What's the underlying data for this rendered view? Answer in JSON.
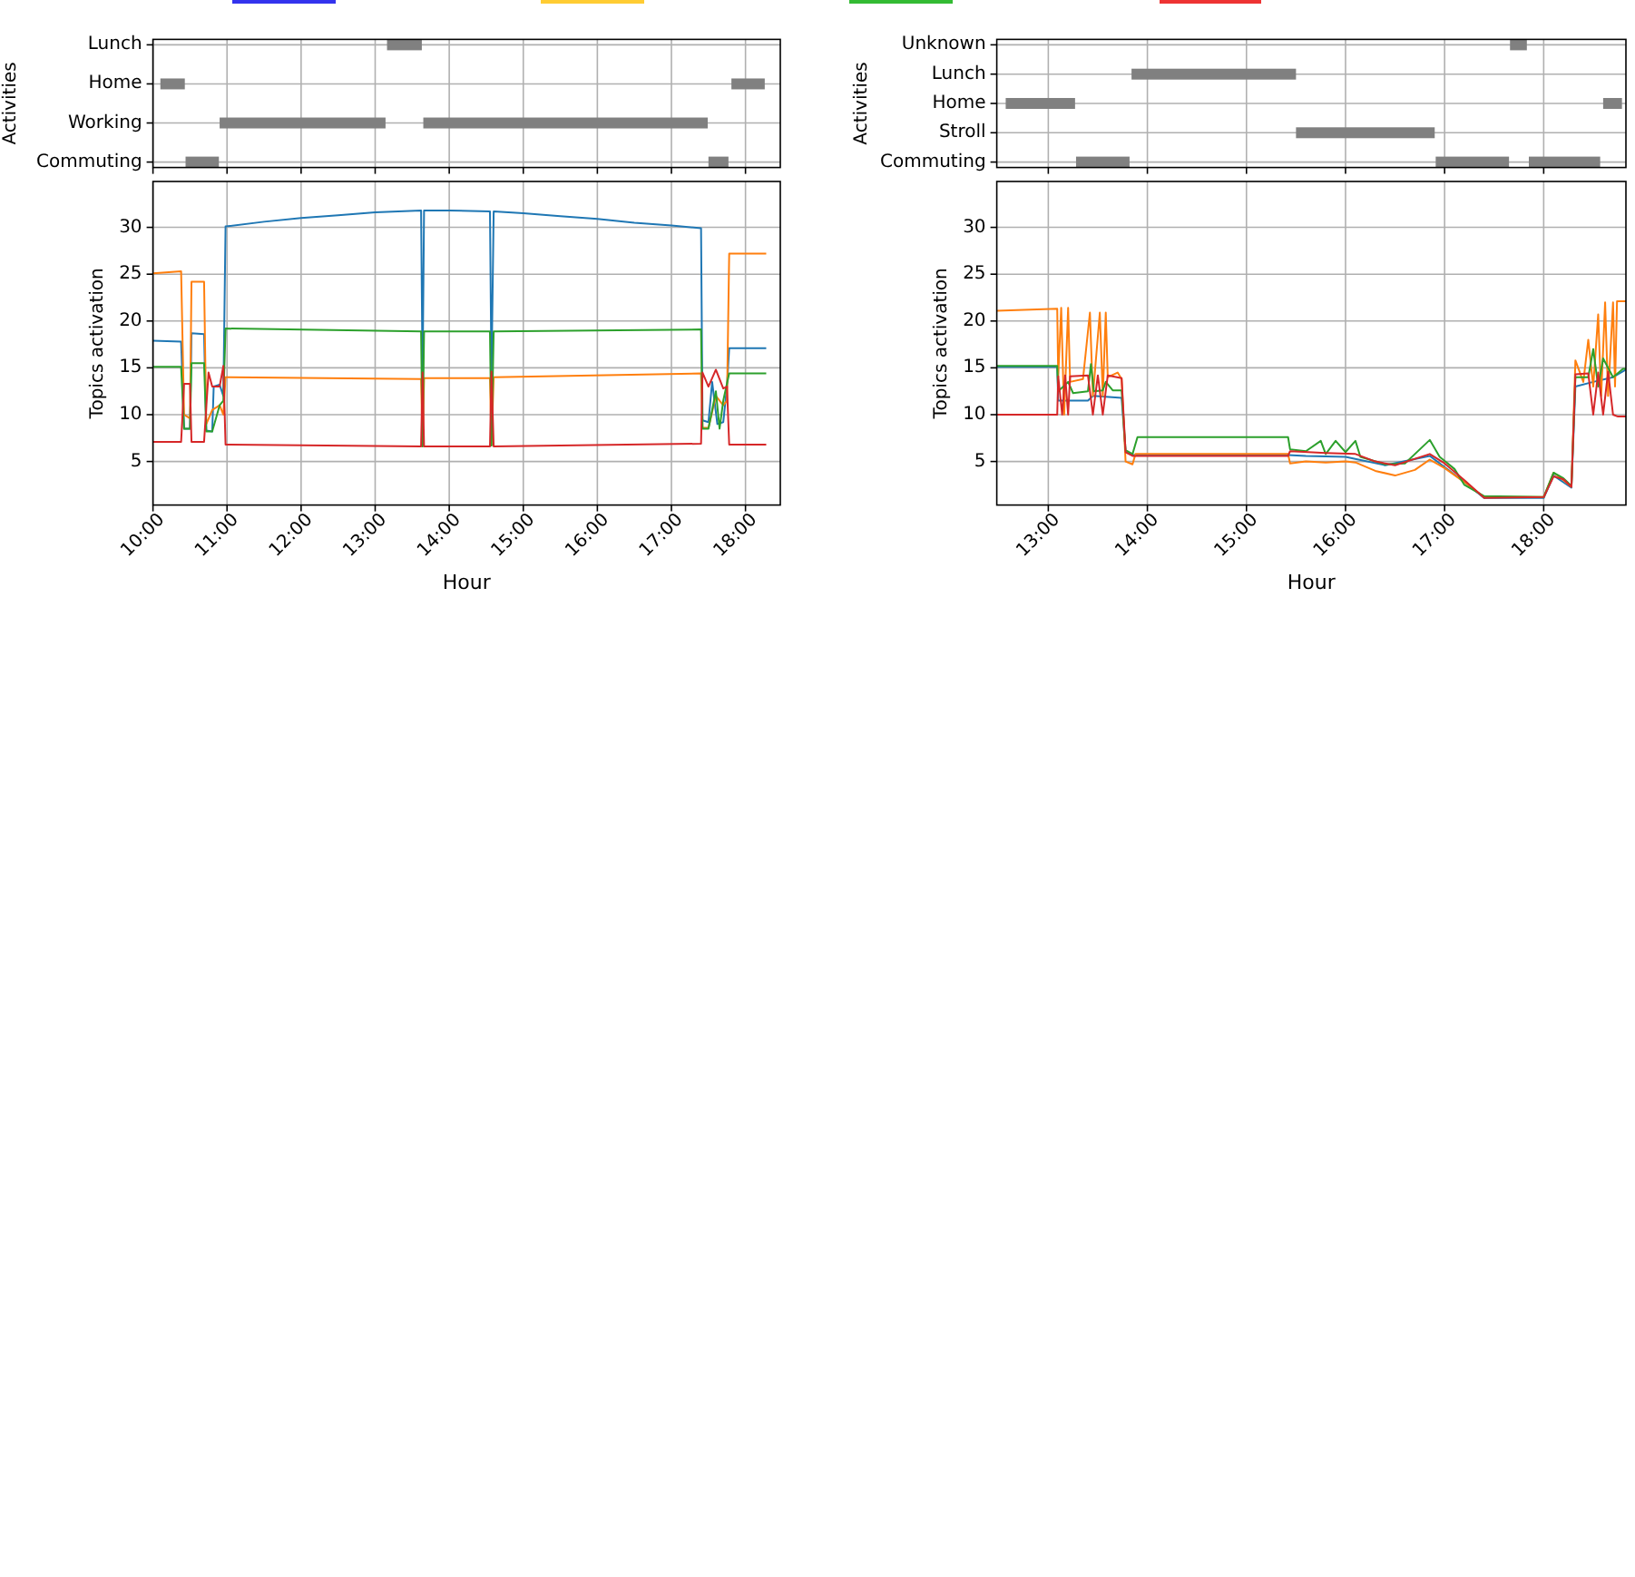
{
  "chart_data": [
    {
      "type": "bar",
      "orientation": "horizontal",
      "ylabel": "Activities",
      "categories": [
        "Lunch",
        "Home",
        "Working",
        "Commuting"
      ],
      "series": [
        {
          "color": "#808080",
          "base": [
            13.16,
            10.1,
            10.9,
            10.44
          ],
          "values": [
            0.47,
            0.33,
            2.24,
            0.45
          ]
        },
        {
          "color": "#808080",
          "base": [
            null,
            17.81,
            13.65,
            17.5
          ],
          "values": [
            null,
            0.45,
            3.84,
            0.27
          ]
        }
      ],
      "xlim": [
        10,
        18.47
      ],
      "xticks": [
        {
          "value": 10,
          "label": null
        },
        {
          "value": 11,
          "label": null
        },
        {
          "value": 12,
          "label": null
        },
        {
          "value": 13,
          "label": null
        },
        {
          "value": 14,
          "label": null
        },
        {
          "value": 15,
          "label": null
        },
        {
          "value": 16,
          "label": null
        },
        {
          "value": 17,
          "label": null
        },
        {
          "value": 18,
          "label": null
        }
      ],
      "grid": true,
      "tick_labels": "y"
    },
    {
      "type": "bar",
      "orientation": "horizontal",
      "ylabel": "Activities",
      "categories": [
        "Unknown",
        "Lunch",
        "Home",
        "Stroll",
        "Commuting"
      ],
      "series": [
        {
          "color": "#808080",
          "base": [
            17.66,
            13.84,
            12.57,
            15.5,
            13.28
          ],
          "values": [
            0.17,
            1.66,
            0.7,
            1.4,
            0.54
          ]
        },
        {
          "color": "#808080",
          "base": [
            null,
            null,
            18.6,
            null,
            16.91
          ],
          "values": [
            null,
            null,
            0.19,
            null,
            0.74
          ]
        },
        {
          "color": "#808080",
          "base": [
            null,
            null,
            null,
            null,
            17.85
          ],
          "values": [
            null,
            null,
            null,
            null,
            0.72
          ]
        }
      ],
      "xlim": [
        12.48,
        18.83
      ],
      "xticks": [
        {
          "value": 13,
          "label": null
        },
        {
          "value": 14,
          "label": null
        },
        {
          "value": 15,
          "label": null
        },
        {
          "value": 16,
          "label": null
        },
        {
          "value": 17,
          "label": null
        },
        {
          "value": 18,
          "label": null
        }
      ],
      "grid": true,
      "tick_labels": "y"
    },
    {
      "type": "line",
      "xlabel": "Hour",
      "ylabel": "Topics activation",
      "grid": true,
      "series": [
        {
          "color": "#1f77b4",
          "x": [
            10.0,
            10.38,
            10.42,
            10.5,
            10.52,
            10.69,
            10.72,
            10.8,
            10.82,
            10.9,
            10.95,
            10.98,
            11.5,
            12,
            12.5,
            13,
            13.62,
            13.64,
            13.66,
            14,
            14.55,
            14.57,
            14.6,
            15,
            15.5,
            16,
            16.5,
            17,
            17.4,
            17.42,
            17.5,
            17.55,
            17.62,
            17.7,
            17.75,
            17.78,
            18.28
          ],
          "values": [
            17.9,
            17.8,
            8.5,
            8.5,
            18.7,
            18.6,
            8.3,
            8.2,
            13.0,
            13.2,
            12,
            30.1,
            30.6,
            31,
            31.3,
            31.6,
            31.8,
            13.8,
            31.8,
            31.8,
            31.7,
            14.0,
            31.7,
            31.5,
            31.2,
            30.9,
            30.5,
            30.2,
            29.9,
            9.4,
            9.2,
            13.5,
            9,
            9.2,
            13,
            17.1,
            17.1
          ]
        },
        {
          "color": "#ff7f0e",
          "x": [
            10.0,
            10.38,
            10.42,
            10.5,
            10.52,
            10.69,
            10.72,
            10.8,
            10.9,
            10.95,
            10.98,
            13.62,
            13.64,
            13.66,
            14.55,
            14.57,
            14.6,
            17.4,
            17.42,
            17.5,
            17.6,
            17.7,
            17.75,
            17.78,
            18.28
          ],
          "values": [
            25.1,
            25.3,
            10,
            9.6,
            24.2,
            24.2,
            9,
            10.5,
            11,
            10,
            14.0,
            13.8,
            6.6,
            13.9,
            13.9,
            6.7,
            14.0,
            14.4,
            8.6,
            8.6,
            12,
            11,
            11.5,
            27.2,
            27.2
          ]
        },
        {
          "color": "#2ca02c",
          "x": [
            10.0,
            10.38,
            10.42,
            10.5,
            10.52,
            10.69,
            10.72,
            10.8,
            10.9,
            10.95,
            10.98,
            13.62,
            13.64,
            13.66,
            14.55,
            14.57,
            14.6,
            17.4,
            17.42,
            17.5,
            17.6,
            17.65,
            17.7,
            17.78,
            18.28
          ],
          "values": [
            15.1,
            15.1,
            8.5,
            8.5,
            15.5,
            15.5,
            8.2,
            8.2,
            11,
            11.5,
            19.2,
            18.9,
            6.6,
            18.9,
            18.9,
            6.7,
            18.9,
            19.1,
            8.5,
            8.5,
            12.5,
            8.5,
            11.5,
            14.4,
            14.4
          ]
        },
        {
          "color": "#d62728",
          "x": [
            10.0,
            10.38,
            10.42,
            10.5,
            10.52,
            10.69,
            10.75,
            10.8,
            10.9,
            10.95,
            10.98,
            13.62,
            13.64,
            13.66,
            14.55,
            14.57,
            14.6,
            17.4,
            17.42,
            17.5,
            17.6,
            17.7,
            17.75,
            17.78,
            18.28
          ],
          "values": [
            7.1,
            7.1,
            13.3,
            13.3,
            7.1,
            7.1,
            14.5,
            13,
            13,
            15.2,
            6.8,
            6.6,
            14.5,
            6.6,
            6.6,
            14.6,
            6.6,
            6.9,
            14.5,
            13,
            14.8,
            12.8,
            13,
            6.8,
            6.8
          ]
        }
      ],
      "xlim": [
        10,
        18.47
      ],
      "xticks": [
        {
          "value": 10,
          "label": "10:00"
        },
        {
          "value": 11,
          "label": "11:00"
        },
        {
          "value": 12,
          "label": "12:00"
        },
        {
          "value": 13,
          "label": "13:00"
        },
        {
          "value": 14,
          "label": "14:00"
        },
        {
          "value": 15,
          "label": "15:00"
        },
        {
          "value": 16,
          "label": "16:00"
        },
        {
          "value": 17,
          "label": "17:00"
        },
        {
          "value": 18,
          "label": "18:00"
        }
      ],
      "ylim": [
        0.35,
        34.9
      ],
      "yticks": [
        5,
        10,
        15,
        20,
        25,
        30
      ]
    },
    {
      "type": "line",
      "xlabel": "Hour",
      "ylabel": "Topics activation",
      "grid": true,
      "series": [
        {
          "color": "#1f77b4",
          "x": [
            12.48,
            13.09,
            13.1,
            13.4,
            13.45,
            13.74,
            13.78,
            13.85,
            15.42,
            15.6,
            16,
            16.4,
            16.85,
            17.2,
            17.4,
            18.0,
            18.1,
            18.28,
            18.32,
            18.5,
            18.7,
            18.83
          ],
          "values": [
            15.1,
            15.1,
            11.5,
            11.5,
            12,
            11.8,
            6,
            5.7,
            5.7,
            5.6,
            5.5,
            4.6,
            5.6,
            2.8,
            1.1,
            1.1,
            3.5,
            2.2,
            13,
            13.5,
            14,
            14.8
          ]
        },
        {
          "color": "#ff7f0e",
          "x": [
            12.48,
            13.09,
            13.1,
            13.13,
            13.16,
            13.2,
            13.22,
            13.35,
            13.42,
            13.45,
            13.52,
            13.55,
            13.58,
            13.6,
            13.7,
            13.74,
            13.78,
            13.85,
            13.88,
            15.42,
            15.44,
            15.6,
            15.8,
            16,
            16.1,
            16.3,
            16.5,
            16.7,
            16.85,
            17,
            17.2,
            17.4,
            18.0,
            18.1,
            18.2,
            18.28,
            18.32,
            18.4,
            18.45,
            18.5,
            18.55,
            18.58,
            18.62,
            18.65,
            18.7,
            18.72,
            18.74,
            18.83
          ],
          "values": [
            21.1,
            21.3,
            14,
            21.4,
            10,
            21.4,
            13.5,
            13.8,
            20.9,
            12,
            20.9,
            12,
            20.9,
            14,
            14.5,
            13.8,
            5,
            4.7,
            5.8,
            5.8,
            4.8,
            5,
            4.9,
            5,
            4.9,
            4,
            3.5,
            4.1,
            5.2,
            4.3,
            2.8,
            1.2,
            1.2,
            3.8,
            3,
            2.3,
            15.8,
            13.5,
            18,
            13,
            20.7,
            12,
            22.0,
            12,
            22,
            13,
            22.1,
            22.1
          ]
        },
        {
          "color": "#2ca02c",
          "x": [
            12.48,
            13.09,
            13.1,
            13.2,
            13.25,
            13.4,
            13.43,
            13.46,
            13.55,
            13.58,
            13.65,
            13.74,
            13.78,
            13.85,
            13.9,
            14.0,
            15.42,
            15.44,
            15.6,
            15.75,
            15.8,
            15.9,
            16,
            16.1,
            16.15,
            16.4,
            16.6,
            16.85,
            16.95,
            17.1,
            17.2,
            17.4,
            18.0,
            18.1,
            18.2,
            18.28,
            18.32,
            18.45,
            18.5,
            18.55,
            18.6,
            18.7,
            18.8,
            18.83
          ],
          "values": [
            15.2,
            15.2,
            12.5,
            13.5,
            12.3,
            12.5,
            15.4,
            12.5,
            12.6,
            13.5,
            12.6,
            12.6,
            6.2,
            5.8,
            7.6,
            7.6,
            7.6,
            6.3,
            6.1,
            7.2,
            5.8,
            7.2,
            6,
            7.2,
            5.5,
            4.7,
            4.8,
            7.3,
            5.5,
            4.2,
            2.5,
            1.3,
            1.2,
            3.8,
            3.2,
            2.4,
            14,
            14,
            17,
            13,
            16,
            14,
            14.9,
            14.9
          ]
        },
        {
          "color": "#d62728",
          "x": [
            12.48,
            13.09,
            13.1,
            13.14,
            13.17,
            13.2,
            13.22,
            13.4,
            13.45,
            13.5,
            13.55,
            13.6,
            13.74,
            13.78,
            13.85,
            15.42,
            15.44,
            15.8,
            16.1,
            16.3,
            16.5,
            16.85,
            17.0,
            17.2,
            17.4,
            18.0,
            18.1,
            18.2,
            18.28,
            18.32,
            18.45,
            18.5,
            18.55,
            18.6,
            18.65,
            18.7,
            18.75,
            18.83
          ],
          "values": [
            10,
            10,
            14.1,
            10,
            14.2,
            10,
            14.1,
            14.2,
            10,
            14.2,
            10,
            14.2,
            13.9,
            6,
            5.6,
            5.6,
            6.1,
            5.9,
            5.8,
            5.0,
            4.6,
            5.8,
            4.8,
            3,
            1.1,
            1.2,
            3.4,
            3.1,
            2.3,
            14.3,
            14.4,
            10,
            14.5,
            10,
            14.6,
            10,
            9.8,
            9.8
          ]
        }
      ],
      "xlim": [
        12.48,
        18.83
      ],
      "xticks": [
        {
          "value": 13,
          "label": "13:00"
        },
        {
          "value": 14,
          "label": "14:00"
        },
        {
          "value": 15,
          "label": "15:00"
        },
        {
          "value": 16,
          "label": "16:00"
        },
        {
          "value": 17,
          "label": "17:00"
        },
        {
          "value": 18,
          "label": "18:00"
        }
      ],
      "ylim": [
        0.35,
        34.9
      ],
      "yticks": [
        5,
        10,
        15,
        20,
        25,
        30
      ]
    }
  ]
}
